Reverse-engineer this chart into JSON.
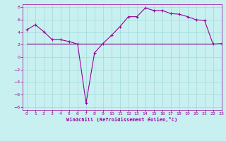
{
  "xlabel": "Windchill (Refroidissement éolien,°C)",
  "bg_color": "#c8f0f0",
  "line_color": "#990099",
  "xlim": [
    -0.5,
    23
  ],
  "ylim": [
    -8.5,
    8.5
  ],
  "xticks": [
    0,
    1,
    2,
    3,
    4,
    5,
    6,
    7,
    8,
    9,
    10,
    11,
    12,
    13,
    14,
    15,
    16,
    17,
    18,
    19,
    20,
    21,
    22,
    23
  ],
  "yticks": [
    -8,
    -6,
    -4,
    -2,
    0,
    2,
    4,
    6,
    8
  ],
  "series1_x": [
    0,
    1,
    2,
    3,
    4,
    5,
    6,
    7,
    8,
    9,
    10,
    11,
    12,
    13,
    14,
    15,
    16,
    17,
    18,
    19,
    20,
    21,
    22,
    23
  ],
  "series1_y": [
    4.4,
    5.2,
    4.1,
    2.8,
    2.8,
    2.5,
    2.1,
    -7.4,
    0.7,
    2.2,
    3.5,
    4.9,
    6.5,
    6.5,
    7.9,
    7.5,
    7.5,
    7.0,
    6.9,
    6.5,
    6.0,
    5.9,
    2.1,
    2.2
  ],
  "flat_line_x": [
    0,
    22
  ],
  "flat_line_y": [
    2.2,
    2.2
  ],
  "grid_color": "#a0d8d8",
  "spine_color": "#888888"
}
